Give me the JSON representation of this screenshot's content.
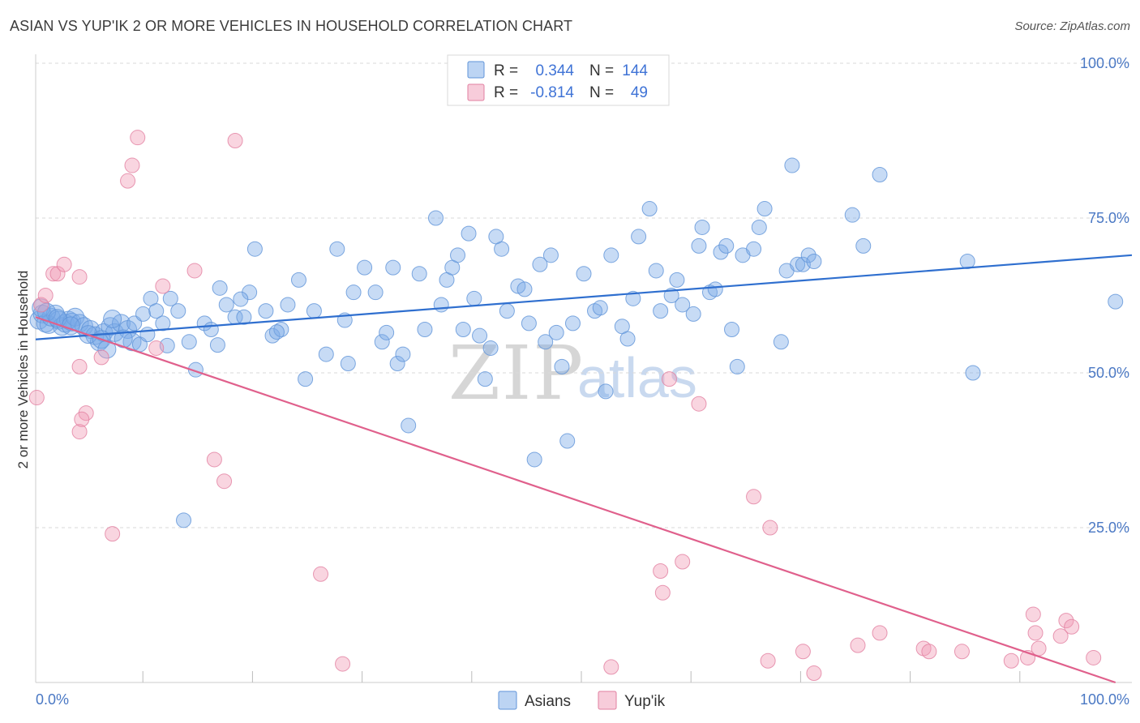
{
  "title": "ASIAN VS YUP'IK 2 OR MORE VEHICLES IN HOUSEHOLD CORRELATION CHART",
  "source": "Source: ZipAtlas.com",
  "watermark": {
    "part1": "ZIP",
    "part2": "atlas"
  },
  "colors": {
    "asian": "#7aaae8",
    "asian_line": "#2f6fcf",
    "yupik": "#f09ab5",
    "yupik_line": "#e0608c",
    "label": "#4a78c4"
  },
  "legend": {
    "rows": [
      {
        "r_label": "R =",
        "r_value": "0.344",
        "n_label": "N =",
        "n_value": "144"
      },
      {
        "r_label": "R =",
        "r_value": "-0.814",
        "n_label": "N =",
        "n_value": "49"
      }
    ]
  },
  "bottom_legend": [
    {
      "label": "Asians"
    },
    {
      "label": "Yup'ik"
    }
  ],
  "chart_data": {
    "type": "scatter",
    "title": "ASIAN VS YUP'IK 2 OR MORE VEHICLES IN HOUSEHOLD CORRELATION CHART",
    "xlabel": "",
    "ylabel": "2 or more Vehicles in Household",
    "xlim": [
      0,
      100
    ],
    "ylim": [
      0,
      100
    ],
    "x_tick_labels": [
      "0.0%",
      "100.0%"
    ],
    "y_tick_labels": [
      "25.0%",
      "50.0%",
      "75.0%",
      "100.0%"
    ],
    "y_ticks": [
      25,
      50,
      75,
      100
    ],
    "grid": "horizontal dashed",
    "legend_position": "top-center",
    "series": [
      {
        "name": "Asians",
        "r": 0.344,
        "n": 144,
        "trend": {
          "x": [
            0,
            100
          ],
          "y": [
            55.4,
            69.0
          ]
        },
        "points": [
          [
            0.3,
            58.5
          ],
          [
            0.6,
            59.5
          ],
          [
            0.9,
            58
          ],
          [
            1.2,
            57.8
          ],
          [
            1.4,
            59
          ],
          [
            1.8,
            59.5
          ],
          [
            2.1,
            58.5
          ],
          [
            2.4,
            57.5
          ],
          [
            2.7,
            58
          ],
          [
            3.0,
            58.5
          ],
          [
            3.3,
            58.2
          ],
          [
            3.6,
            59
          ],
          [
            4.0,
            58
          ],
          [
            4.4,
            57.5
          ],
          [
            5.0,
            57
          ],
          [
            5.4,
            56
          ],
          [
            5.8,
            55
          ],
          [
            6.2,
            56.5
          ],
          [
            6.8,
            57.5
          ],
          [
            7.2,
            56.5
          ],
          [
            7.8,
            58
          ],
          [
            8.4,
            57
          ],
          [
            8.8,
            55
          ],
          [
            9.0,
            58
          ],
          [
            9.8,
            59.5
          ],
          [
            10.5,
            62
          ],
          [
            11.0,
            60
          ],
          [
            11.6,
            58
          ],
          [
            12.3,
            62
          ],
          [
            13.0,
            60
          ],
          [
            14.0,
            55
          ],
          [
            14.6,
            50.5
          ],
          [
            15.4,
            58
          ],
          [
            16.0,
            57
          ],
          [
            16.6,
            54.5
          ],
          [
            17.4,
            61
          ],
          [
            18.2,
            59
          ],
          [
            19.0,
            59
          ],
          [
            19.5,
            63
          ],
          [
            20.0,
            70
          ],
          [
            21.0,
            60
          ],
          [
            21.6,
            56
          ],
          [
            22.4,
            57
          ],
          [
            23.0,
            61
          ],
          [
            24.0,
            65
          ],
          [
            24.6,
            49
          ],
          [
            25.4,
            60
          ],
          [
            26.5,
            53
          ],
          [
            27.5,
            70
          ],
          [
            28.2,
            58.5
          ],
          [
            28.5,
            51.5
          ],
          [
            29.0,
            63
          ],
          [
            30.0,
            67
          ],
          [
            31.0,
            63
          ],
          [
            31.6,
            55
          ],
          [
            32.0,
            56.5
          ],
          [
            32.6,
            67
          ],
          [
            33.0,
            51.5
          ],
          [
            33.5,
            53
          ],
          [
            34.0,
            41.5
          ],
          [
            35.0,
            66
          ],
          [
            35.5,
            57
          ],
          [
            36.5,
            75
          ],
          [
            37.0,
            61
          ],
          [
            37.5,
            65
          ],
          [
            38.0,
            67
          ],
          [
            38.5,
            69
          ],
          [
            39.0,
            57
          ],
          [
            39.5,
            72.5
          ],
          [
            40.0,
            62
          ],
          [
            40.5,
            56
          ],
          [
            41.0,
            49
          ],
          [
            41.5,
            54
          ],
          [
            42.0,
            72
          ],
          [
            42.5,
            70
          ],
          [
            43.0,
            60
          ],
          [
            44.0,
            64
          ],
          [
            44.6,
            63.5
          ],
          [
            45.0,
            58
          ],
          [
            45.5,
            36
          ],
          [
            46.0,
            67.5
          ],
          [
            46.5,
            55
          ],
          [
            47.0,
            69
          ],
          [
            47.5,
            56.5
          ],
          [
            48.0,
            51
          ],
          [
            48.5,
            39
          ],
          [
            49.0,
            58
          ],
          [
            50.0,
            66
          ],
          [
            51.0,
            60
          ],
          [
            51.5,
            60.5
          ],
          [
            52.0,
            47
          ],
          [
            52.5,
            69
          ],
          [
            53.5,
            57.5
          ],
          [
            54.0,
            55.5
          ],
          [
            54.5,
            62
          ],
          [
            55.0,
            72
          ],
          [
            56.0,
            76.5
          ],
          [
            56.6,
            66.5
          ],
          [
            57.0,
            60
          ],
          [
            58.0,
            62.5
          ],
          [
            58.5,
            65
          ],
          [
            59.0,
            61
          ],
          [
            60.0,
            59.5
          ],
          [
            60.5,
            70.5
          ],
          [
            60.8,
            73.5
          ],
          [
            61.5,
            63
          ],
          [
            62.0,
            63.5
          ],
          [
            62.5,
            69.5
          ],
          [
            63.0,
            70.5
          ],
          [
            63.5,
            57
          ],
          [
            64.0,
            51
          ],
          [
            64.5,
            69
          ],
          [
            65.5,
            70
          ],
          [
            66.0,
            73.5
          ],
          [
            66.5,
            76.5
          ],
          [
            68.0,
            55
          ],
          [
            68.5,
            66.5
          ],
          [
            69.0,
            83.5
          ],
          [
            69.5,
            67.5
          ],
          [
            70.0,
            67.5
          ],
          [
            70.5,
            69
          ],
          [
            71.0,
            68
          ],
          [
            74.5,
            75.5
          ],
          [
            75.5,
            70.5
          ],
          [
            77.0,
            82
          ],
          [
            85.0,
            68
          ],
          [
            85.5,
            50
          ],
          [
            98.5,
            61.5
          ],
          [
            0.5,
            60.5
          ],
          [
            1.0,
            59.8
          ],
          [
            2.0,
            58.8
          ],
          [
            3.2,
            57.6
          ],
          [
            4.8,
            56.2
          ],
          [
            6.0,
            55.4
          ],
          [
            6.5,
            53.8
          ],
          [
            7.0,
            58.7
          ],
          [
            8.0,
            55.5
          ],
          [
            9.5,
            54.6
          ],
          [
            10.2,
            56.2
          ],
          [
            12.0,
            54.4
          ],
          [
            13.5,
            26.2
          ],
          [
            16.8,
            63.7
          ],
          [
            18.7,
            61.9
          ],
          [
            22.0,
            56.6
          ]
        ]
      },
      {
        "name": "Yup'ik",
        "r": -0.814,
        "n": 49,
        "trend": {
          "x": [
            0,
            98.5
          ],
          "y": [
            59.0,
            0.0
          ]
        },
        "points": [
          [
            0.1,
            46
          ],
          [
            0.5,
            61
          ],
          [
            0.9,
            62.5
          ],
          [
            1.6,
            66
          ],
          [
            2.0,
            66
          ],
          [
            2.6,
            67.5
          ],
          [
            4.0,
            51
          ],
          [
            4.0,
            65.5
          ],
          [
            4.6,
            43.5
          ],
          [
            4.0,
            40.5
          ],
          [
            4.2,
            42.5
          ],
          [
            6.0,
            52.5
          ],
          [
            7.0,
            24
          ],
          [
            8.4,
            81
          ],
          [
            8.8,
            83.5
          ],
          [
            9.3,
            88
          ],
          [
            11.0,
            54
          ],
          [
            11.6,
            64
          ],
          [
            14.5,
            66.5
          ],
          [
            16.3,
            36
          ],
          [
            17.2,
            32.5
          ],
          [
            18.2,
            87.5
          ],
          [
            26.0,
            17.5
          ],
          [
            28.0,
            3
          ],
          [
            52.5,
            2.5
          ],
          [
            57.0,
            18
          ],
          [
            57.2,
            14.5
          ],
          [
            57.8,
            49
          ],
          [
            59.0,
            19.5
          ],
          [
            60.5,
            45
          ],
          [
            65.5,
            30
          ],
          [
            66.8,
            3.5
          ],
          [
            67.0,
            25
          ],
          [
            70.0,
            5
          ],
          [
            71.0,
            1.5
          ],
          [
            75.0,
            6
          ],
          [
            77.0,
            8
          ],
          [
            81.0,
            5.5
          ],
          [
            81.5,
            5
          ],
          [
            84.5,
            5
          ],
          [
            89.0,
            3.5
          ],
          [
            91.0,
            11
          ],
          [
            91.2,
            8
          ],
          [
            90.5,
            4
          ],
          [
            91.5,
            5.5
          ],
          [
            93.5,
            7.5
          ],
          [
            94.0,
            10
          ],
          [
            94.5,
            9
          ],
          [
            96.5,
            4
          ]
        ]
      }
    ]
  }
}
